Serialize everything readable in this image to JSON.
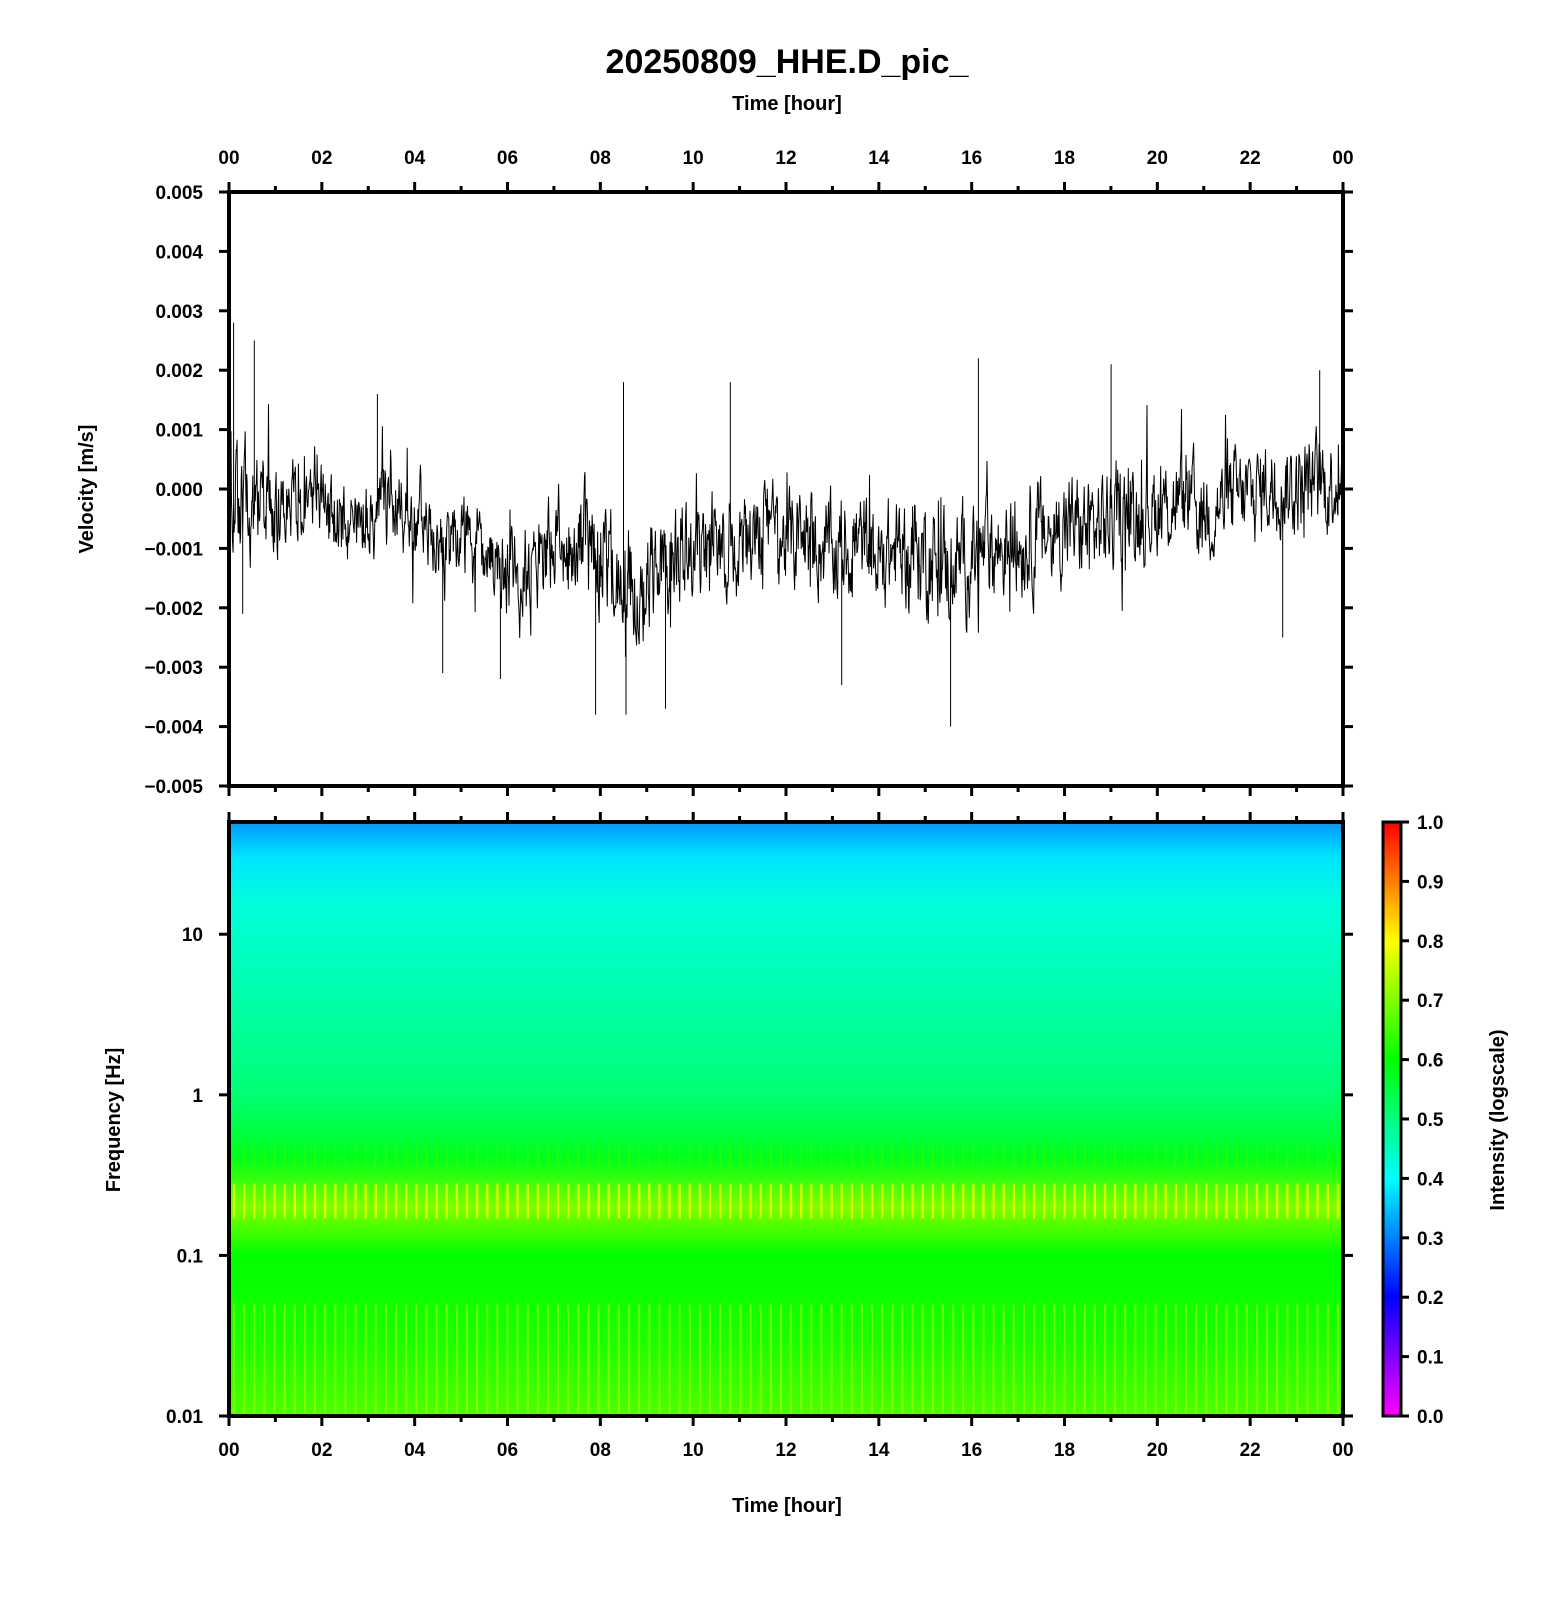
{
  "figure": {
    "title": "20250809_HHE.D_pic_",
    "top_axis_label": "Time [hour]",
    "bottom_axis_label": "Time [hour]"
  },
  "chart_data": [
    {
      "type": "line",
      "name": "waveform",
      "title": "20250809_HHE.D_pic_",
      "xlabel": "Time [hour]",
      "ylabel": "Velocity [m/s]",
      "x_tick_labels": [
        "00",
        "02",
        "04",
        "06",
        "08",
        "10",
        "12",
        "14",
        "16",
        "18",
        "20",
        "22",
        "00"
      ],
      "xlim": [
        0,
        24
      ],
      "ylim": [
        -0.005,
        0.005
      ],
      "y_tick_values": [
        0.005,
        0.004,
        0.003,
        0.002,
        0.001,
        0.0,
        -0.001,
        -0.002,
        -0.003,
        -0.004,
        -0.005
      ],
      "y_tick_labels": [
        "0.005",
        "0.004",
        "0.003",
        "0.002",
        "0.001",
        "0.000",
        "−0.001",
        "−0.002",
        "−0.003",
        "−0.004",
        "−0.005"
      ],
      "trace_color": "#000000",
      "series_x": [
        0,
        0.5,
        1,
        1.5,
        2,
        2.5,
        3,
        3.5,
        4,
        4.5,
        5,
        5.5,
        6,
        6.5,
        7,
        7.5,
        8,
        8.5,
        9,
        9.5,
        10,
        10.5,
        11,
        11.5,
        12,
        12.5,
        13,
        13.5,
        14,
        14.5,
        15,
        15.5,
        16,
        16.5,
        17,
        17.5,
        18,
        18.5,
        19,
        19.5,
        20,
        20.5,
        21,
        21.5,
        22,
        22.5,
        23,
        23.5,
        24
      ],
      "series_mean": [
        0.0,
        -0.0003,
        -0.0002,
        -0.0004,
        -0.0002,
        -0.0006,
        -0.0005,
        -0.0002,
        -0.0004,
        -0.0008,
        -0.0009,
        -0.0011,
        -0.0015,
        -0.0013,
        -0.001,
        -0.0009,
        -0.0012,
        -0.0014,
        -0.0016,
        -0.0012,
        -0.001,
        -0.0008,
        -0.001,
        -0.0006,
        -0.0009,
        -0.0008,
        -0.0011,
        -0.0009,
        -0.0012,
        -0.001,
        -0.0011,
        -0.0013,
        -0.0012,
        -0.001,
        -0.0009,
        -0.0008,
        -0.0006,
        -0.0007,
        -0.0005,
        -0.0004,
        -0.0003,
        -0.0002,
        -0.0004,
        -0.0002,
        -0.0001,
        0.0001,
        0.0,
        0.0001,
        0.0002
      ],
      "series_amplitude": [
        0.0013,
        0.0011,
        0.001,
        0.0009,
        0.0008,
        0.0009,
        0.0009,
        0.001,
        0.0009,
        0.0008,
        0.0008,
        0.0008,
        0.0009,
        0.001,
        0.0011,
        0.0012,
        0.0013,
        0.0013,
        0.0012,
        0.0011,
        0.0011,
        0.0011,
        0.001,
        0.001,
        0.001,
        0.001,
        0.0011,
        0.0011,
        0.0011,
        0.0011,
        0.0012,
        0.0012,
        0.0011,
        0.0011,
        0.0011,
        0.0011,
        0.0011,
        0.0011,
        0.0011,
        0.0011,
        0.001,
        0.001,
        0.001,
        0.001,
        0.001,
        0.001,
        0.001,
        0.001,
        0.001
      ],
      "peaks": [
        {
          "x": 0.1,
          "y": 0.0028
        },
        {
          "x": 0.55,
          "y": 0.0025
        },
        {
          "x": 0.3,
          "y": -0.0021
        },
        {
          "x": 3.2,
          "y": 0.0016
        },
        {
          "x": 4.6,
          "y": -0.0031
        },
        {
          "x": 5.85,
          "y": -0.0032
        },
        {
          "x": 7.9,
          "y": -0.0038
        },
        {
          "x": 8.55,
          "y": -0.0038
        },
        {
          "x": 8.5,
          "y": 0.0018
        },
        {
          "x": 9.4,
          "y": -0.0037
        },
        {
          "x": 10.8,
          "y": 0.0018
        },
        {
          "x": 13.2,
          "y": -0.0033
        },
        {
          "x": 15.55,
          "y": -0.004
        },
        {
          "x": 16.15,
          "y": 0.0022
        },
        {
          "x": 19.0,
          "y": 0.0021
        },
        {
          "x": 22.7,
          "y": -0.0025
        },
        {
          "x": 23.5,
          "y": 0.002
        }
      ]
    },
    {
      "type": "heatmap",
      "name": "spectrogram",
      "xlabel": "Time [hour]",
      "ylabel": "Frequency [Hz]",
      "x_tick_labels": [
        "00",
        "02",
        "04",
        "06",
        "08",
        "10",
        "12",
        "14",
        "16",
        "18",
        "20",
        "22",
        "00"
      ],
      "xlim": [
        0,
        24
      ],
      "ylim": [
        0.01,
        50
      ],
      "yscale": "log",
      "y_tick_values": [
        10,
        1,
        0.1,
        0.01
      ],
      "y_tick_labels": [
        "10",
        "1",
        "0.1",
        "0.01"
      ],
      "colorbar": {
        "label": "Intensity (logscale)",
        "range": [
          0.0,
          1.0
        ],
        "tick_labels": [
          "1.0",
          "0.9",
          "0.8",
          "0.7",
          "0.6",
          "0.5",
          "0.4",
          "0.3",
          "0.2",
          "0.1",
          "0.0"
        ],
        "colors": [
          "#ff00ff",
          "#8000ff",
          "#0000ff",
          "#0080ff",
          "#00ffff",
          "#00ff80",
          "#00ff00",
          "#80ff00",
          "#ffff00",
          "#ff8000",
          "#ff0000"
        ]
      },
      "intensity_profile": [
        {
          "freq": 50,
          "value": 0.32
        },
        {
          "freq": 30,
          "value": 0.38
        },
        {
          "freq": 15,
          "value": 0.43
        },
        {
          "freq": 5,
          "value": 0.46
        },
        {
          "freq": 1,
          "value": 0.51
        },
        {
          "freq": 0.4,
          "value": 0.58
        },
        {
          "freq": 0.2,
          "value": 0.7
        },
        {
          "freq": 0.1,
          "value": 0.6
        },
        {
          "freq": 0.03,
          "value": 0.62
        },
        {
          "freq": 0.01,
          "value": 0.66
        }
      ],
      "periodic_stripes": 110
    }
  ]
}
